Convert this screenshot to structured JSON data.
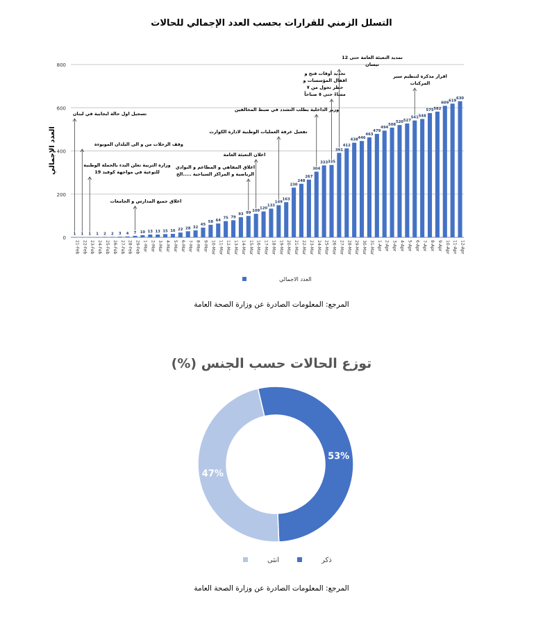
{
  "chart_data": [
    {
      "type": "bar",
      "title": "التسلل الزمني للقرارات بحسب العدد الإجمالي للحالات",
      "ylabel": "العدد الإجمالي",
      "ylim": [
        0,
        800
      ],
      "yticks": [
        "0",
        "200",
        "400",
        "600",
        "800"
      ],
      "grid": true,
      "legend_position": "bottom",
      "categories": [
        "21-Feb",
        "22-Feb",
        "23-Feb",
        "24-Feb",
        "25-Feb",
        "26-Feb",
        "27-Feb",
        "28-Feb",
        "29-Feb",
        "1-Mar",
        "2-Mar",
        "3-Mar",
        "4-Mar",
        "5-Mar",
        "6-Mar",
        "7-Mar",
        "8-Mar",
        "9-Mar",
        "10-Mar",
        "11-Mar",
        "12-Mar",
        "13-Mar",
        "14-Mar",
        "15-Mar",
        "16-Mar",
        "17-Mar",
        "18-Mar",
        "19-Mar",
        "20-Mar",
        "21-Mar",
        "22-Mar",
        "23-Mar",
        "24-Mar",
        "25-Mar",
        "26-Mar",
        "27-Mar",
        "28-Mar",
        "29-Mar",
        "30-Mar",
        "31-Mar",
        "1-Apr",
        "2-Apr",
        "3-Apr",
        "4-Apr",
        "5-Apr",
        "6-Apr",
        "7-Apr",
        "8-Apr",
        "9-Apr",
        "10-Apr",
        "11-Apr",
        "12-Apr"
      ],
      "series": [
        {
          "name": "العدد الاجمالي",
          "color": "#4472C4",
          "values": [
            1,
            1,
            1,
            1,
            2,
            2,
            3,
            4,
            7,
            10,
            13,
            13,
            15,
            16,
            22,
            28,
            32,
            45,
            58,
            64,
            75,
            79,
            93,
            99,
            109,
            120,
            133,
            149,
            163,
            230,
            248,
            267,
            304,
            333,
            335,
            391,
            412,
            438,
            446,
            463,
            479,
            494,
            508,
            520,
            527,
            541,
            548,
            575,
            582,
            609,
            619,
            630
          ]
        }
      ],
      "annotations": [
        {
          "category": "21-Feb",
          "lines": [
            "تسجيل اول حالة ايجابية في لبنان"
          ]
        },
        {
          "category": "22-Feb",
          "lines": [
            "وقف الرحلات من و الى البلدان الموبوءة"
          ]
        },
        {
          "category": "23-Feb",
          "lines": [
            "وزارة التربية تعلن البدء بالحملة الوطنية",
            "للتوعية في مواجهة كوفيد 19"
          ]
        },
        {
          "category": "29-Feb",
          "lines": [
            "اغلاق جميع المدارس و الجامعات"
          ]
        },
        {
          "category": "15-Mar",
          "lines": [
            "اغلاق المقاهي و المطاعم و النوادي",
            "الرياضية و المراكز السياحية .....الخ"
          ]
        },
        {
          "category": "16-Mar",
          "lines": [
            "اعلان التعبئة العامة"
          ]
        },
        {
          "category": "19-Mar",
          "lines": [
            "تفعيل غرفة العمليات الوطنية لادارة الكوارث"
          ]
        },
        {
          "category": "24-Mar",
          "lines": [
            "وزير الداخلية يطلب التشدد في ضبط المخالفين"
          ]
        },
        {
          "category": "26-Mar",
          "lines": [
            "تحديد أوقات فتح و",
            "اقفال المؤسسات و",
            "حظر تجول من ٧",
            "مساءً حتى ٥ صباحاً"
          ]
        },
        {
          "category": "27-Mar",
          "lines": [
            "تمديد التعبئة العامة حتى 12",
            "نيسان"
          ]
        },
        {
          "category": "6-Apr",
          "lines": [
            "اقرار مذكرة لتنظيم سير",
            "المركبات"
          ]
        }
      ],
      "source_label": "المرجع: المعلومات الصادرة عن وزارة الصحة العامة"
    },
    {
      "type": "pie",
      "title": "توزع الحالات حسب الجنس (%)",
      "slices": [
        {
          "label": "ذكر",
          "value": 53,
          "value_label": "53%",
          "color": "#4472C4"
        },
        {
          "label": "انثى",
          "value": 47,
          "value_label": "47%",
          "color": "#B4C7E7"
        }
      ],
      "legend_position": "bottom",
      "source_label": "المرجع: المعلومات الصادرة عن وزارة الصحة العامة"
    }
  ]
}
